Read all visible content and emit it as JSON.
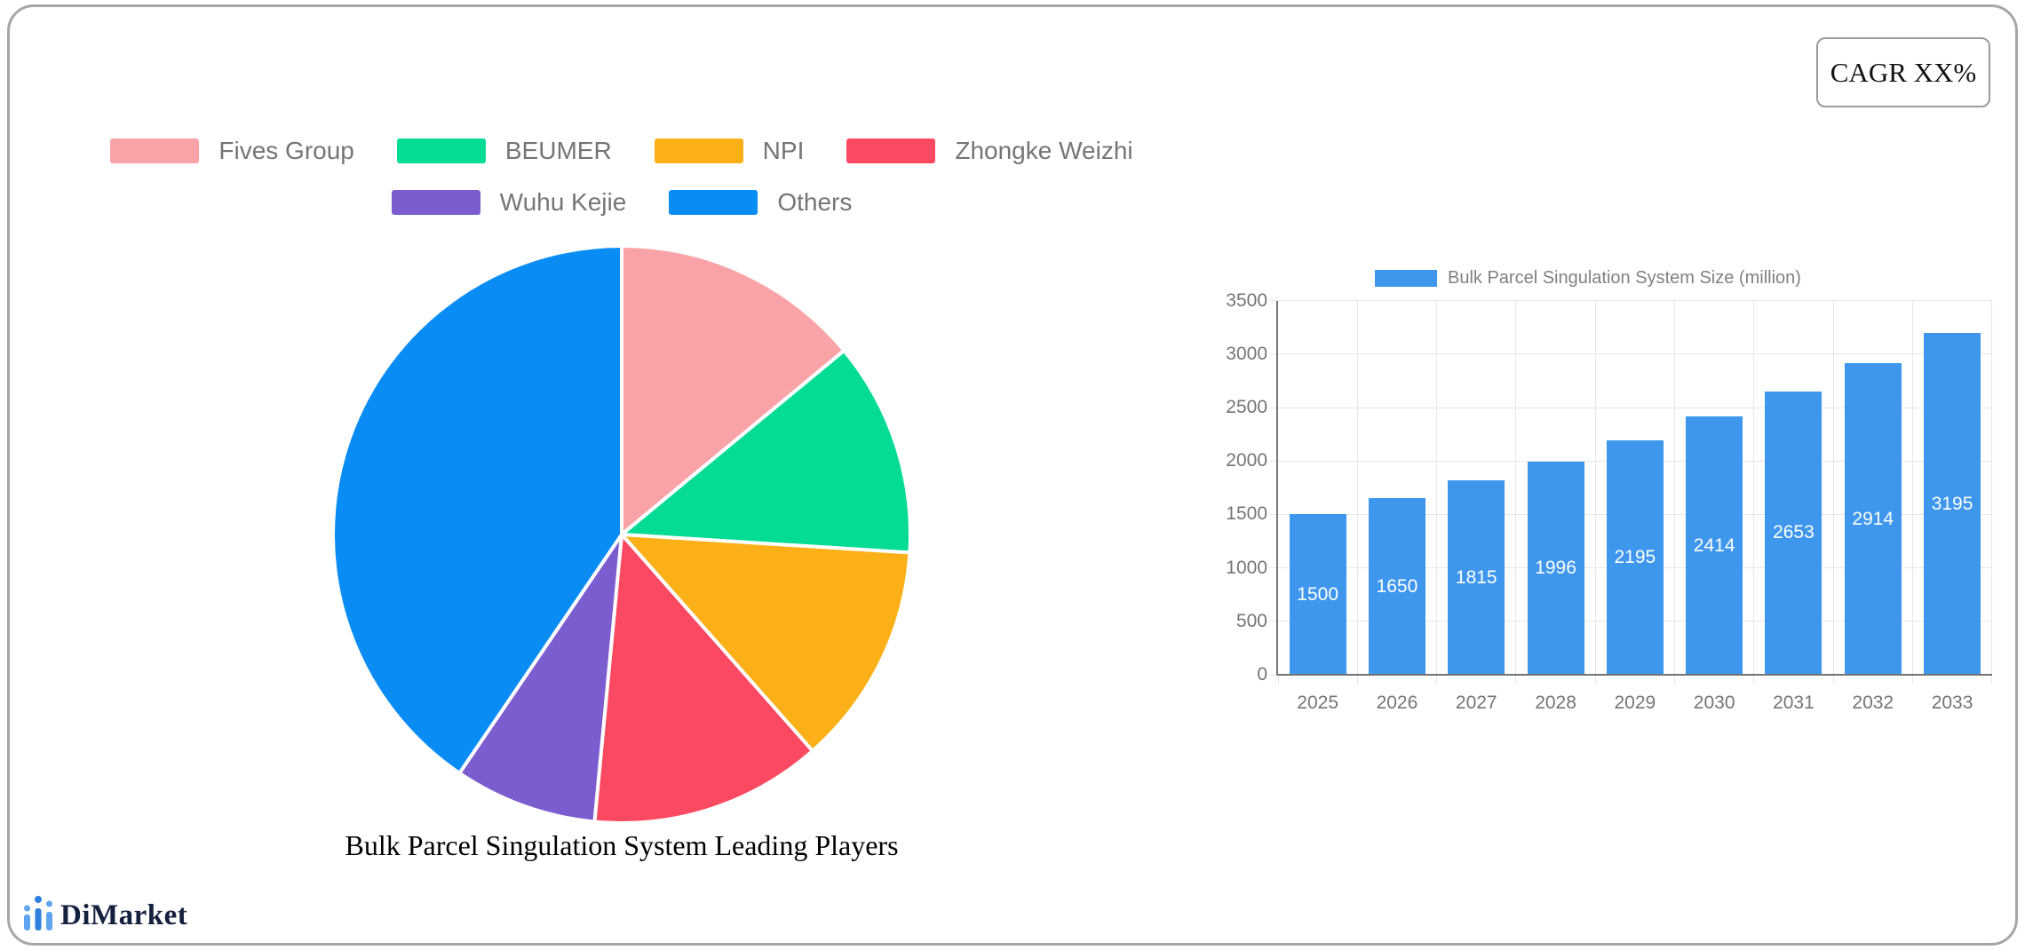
{
  "badge": {
    "label": "CAGR XX%"
  },
  "logo": {
    "text": "DiMarket"
  },
  "chart_data": [
    {
      "type": "pie",
      "title": "Bulk Parcel Singulation System Leading Players",
      "legend_position": "top",
      "labels": [
        "Fives Group",
        "BEUMER",
        "NPI",
        "Zhongke Weizhi",
        "Wuhu Kejie",
        "Others"
      ],
      "values": [
        14,
        12,
        12.5,
        13,
        8,
        40.5
      ],
      "values_unit": "percent share (estimated from slice angles)",
      "colors": [
        "#F9A3A8",
        "#04DC95",
        "#FCB017",
        "#FB4962",
        "#7B5DCF",
        "#0A8CF5"
      ],
      "legend_rows": [
        [
          0,
          1,
          2,
          3
        ],
        [
          4,
          5
        ]
      ]
    },
    {
      "type": "bar",
      "legend": "Bulk Parcel Singulation System Size (million)",
      "categories": [
        "2025",
        "2026",
        "2027",
        "2028",
        "2029",
        "2030",
        "2031",
        "2032",
        "2033"
      ],
      "values": [
        1500,
        1650,
        1815,
        1996,
        2195,
        2414,
        2653,
        2914,
        3195
      ],
      "ylim": [
        0,
        3500
      ],
      "yticks": [
        0,
        500,
        1000,
        1500,
        2000,
        2500,
        3000,
        3500
      ],
      "bar_color": "#3E97ED",
      "grid": true,
      "value_labels": "white, centered inside bars",
      "legend_position": "top"
    }
  ]
}
